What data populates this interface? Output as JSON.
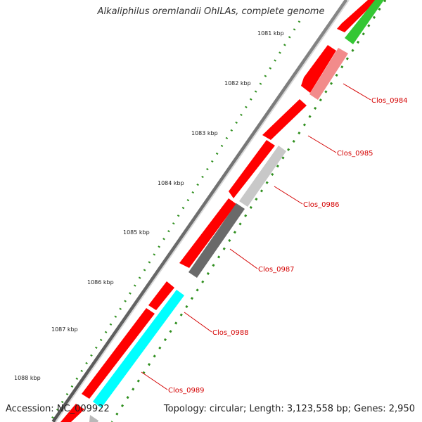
{
  "title": "Alkaliphilus oremlandii OhILAs, complete genome",
  "footer": {
    "accession": "Accession: NC_009922",
    "summary": "Topology: circular; Length: 3,123,558 bp; Genes: 2,950"
  },
  "colors": {
    "backbone_outer": "#666666",
    "backbone_inner": "#cfcfcf",
    "forward_genes": "#ff0000",
    "label_text": "#d40000",
    "ruler": "#2f8f1e",
    "green_gene": "#34c734",
    "salmon_gene": "#f28b8b",
    "light_gray_gene": "#c8c8c8",
    "dark_gray_gene": "#6a6a6a",
    "cyan_gene": "#00ffff"
  },
  "scale": [
    {
      "label": "1081 kbp"
    },
    {
      "label": "1082 kbp"
    },
    {
      "label": "1083 kbp"
    },
    {
      "label": "1084 kbp"
    },
    {
      "label": "1085 kbp"
    },
    {
      "label": "1086 kbp"
    },
    {
      "label": "1087 kbp"
    },
    {
      "label": "1088 kbp"
    }
  ],
  "labels": [
    {
      "text": "Clos_0984"
    },
    {
      "text": "Clos_0985"
    },
    {
      "text": "Clos_0986"
    },
    {
      "text": "Clos_0987"
    },
    {
      "text": "Clos_0988"
    },
    {
      "text": "Clos_0989"
    }
  ]
}
